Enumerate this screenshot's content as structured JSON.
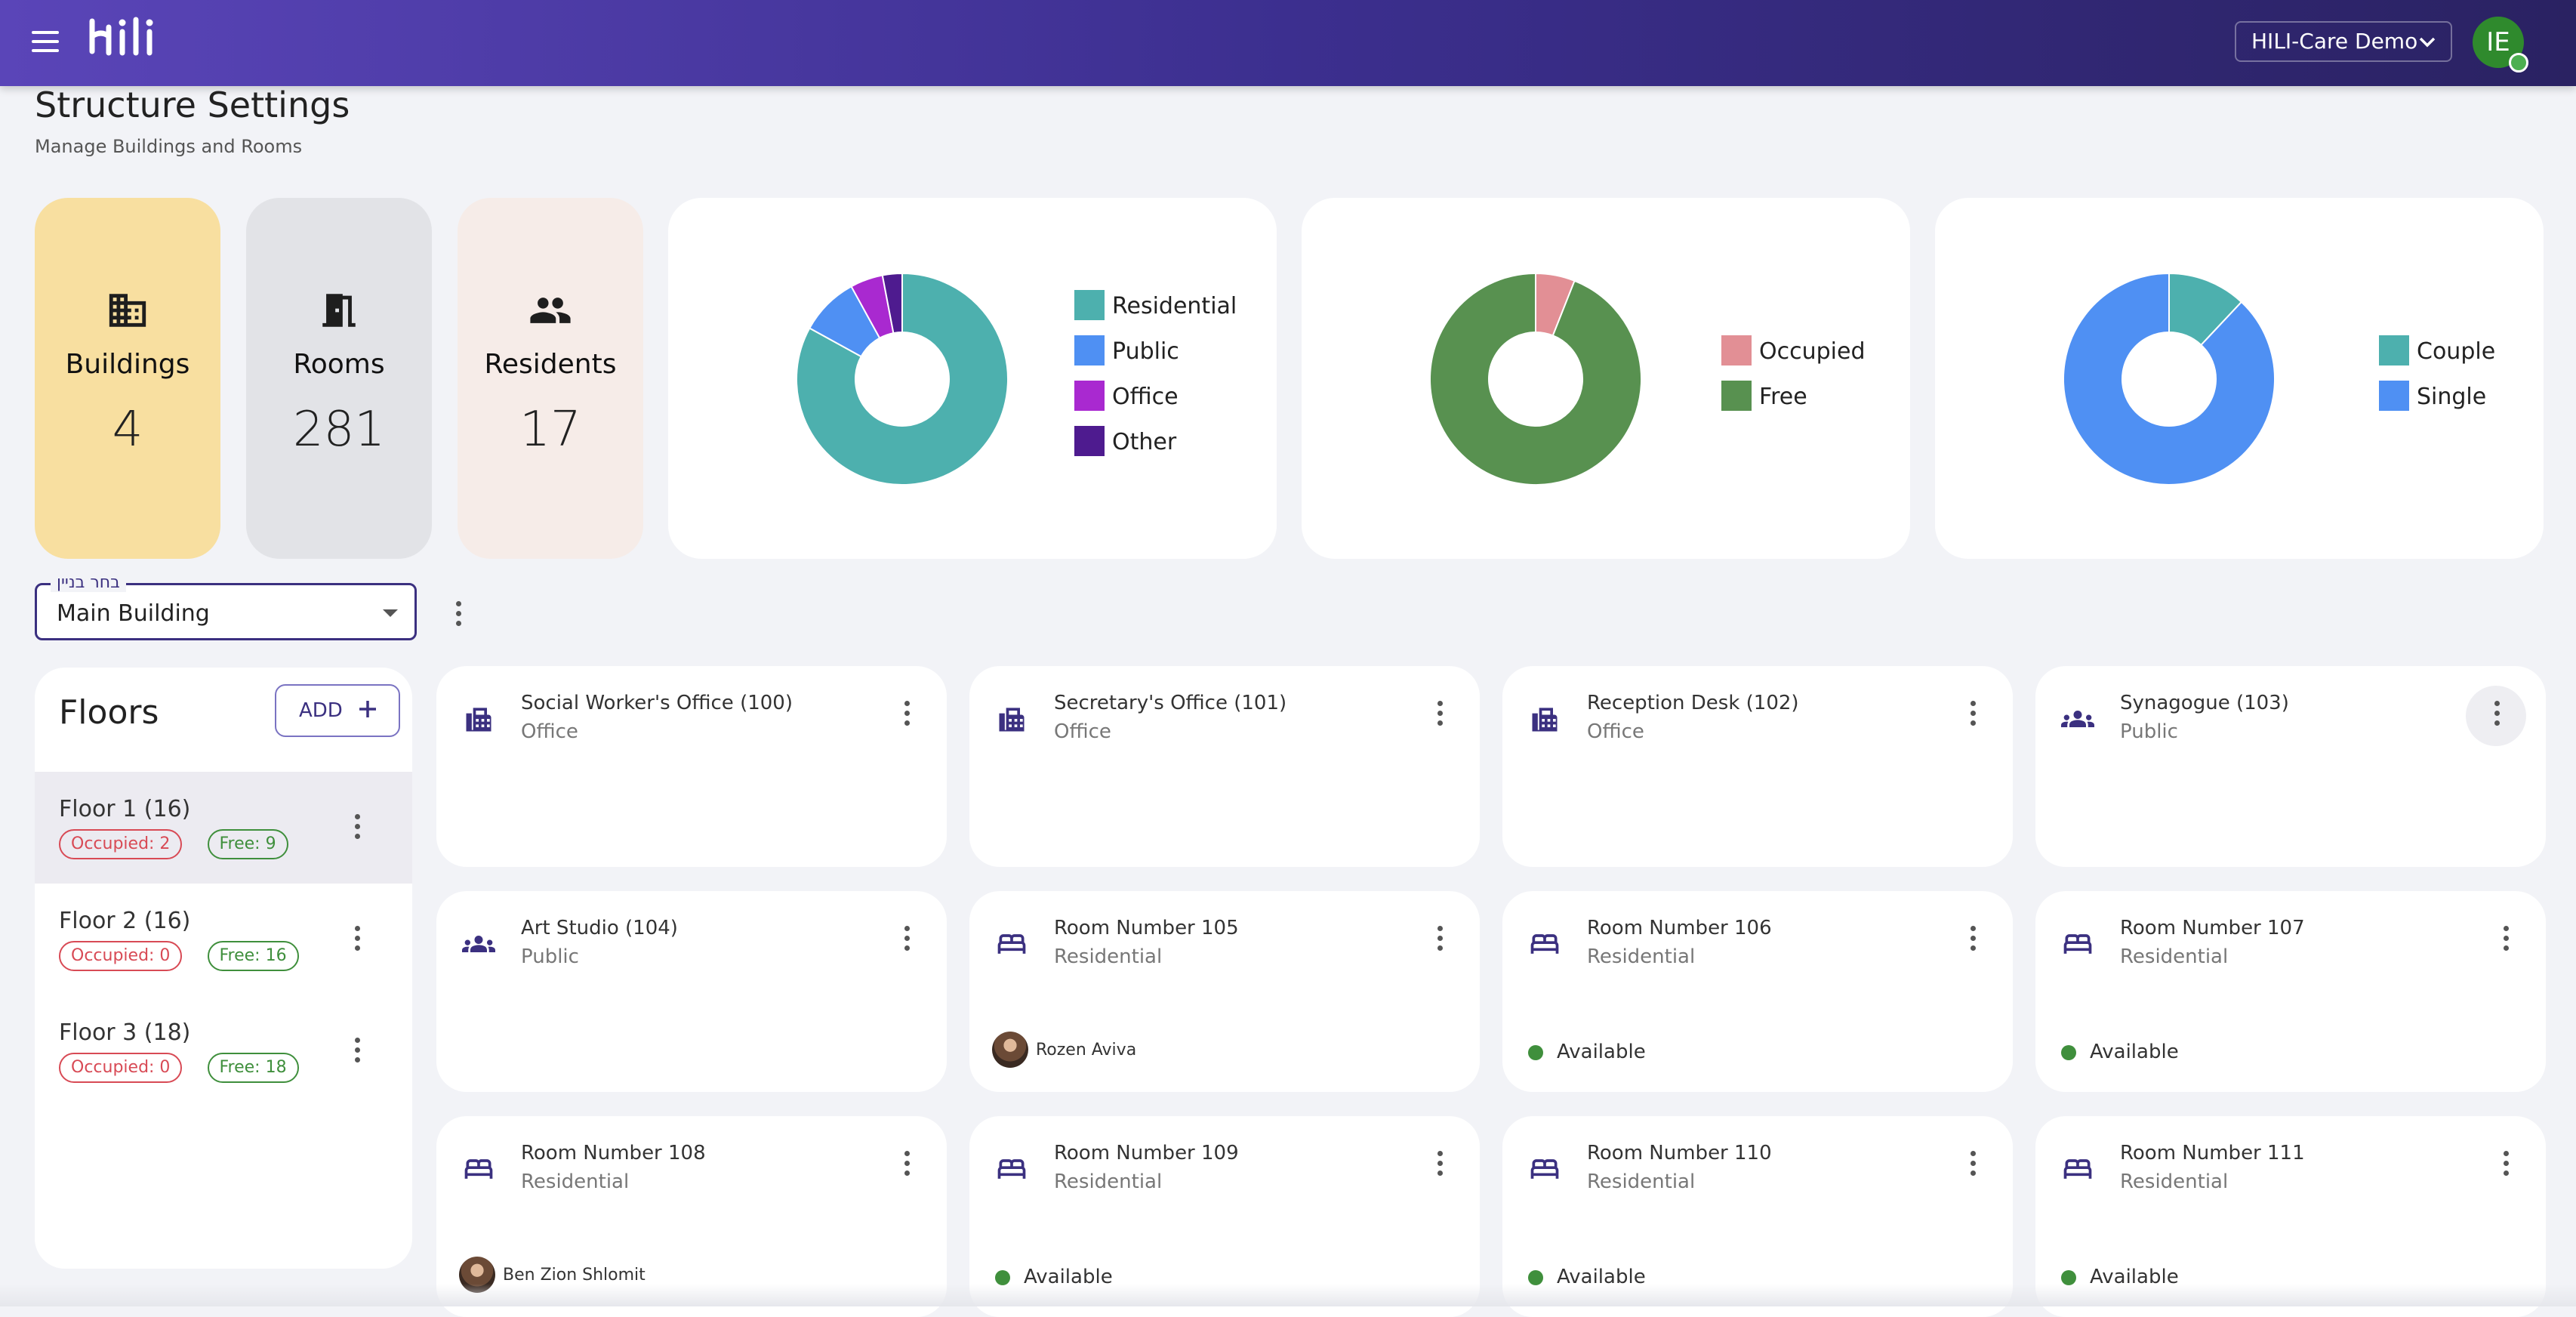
{
  "header": {
    "org_name": "HILI-Care Demo",
    "avatar_initials": "IE"
  },
  "page": {
    "title": "Structure Settings",
    "subtitle": "Manage Buildings and Rooms"
  },
  "stats": [
    {
      "label": "Buildings",
      "value": "4",
      "icon": "building-icon",
      "color": "#f8dfa0"
    },
    {
      "label": "Rooms",
      "value": "281",
      "icon": "door-icon",
      "color": "#e2e3e7"
    },
    {
      "label": "Residents",
      "value": "17",
      "icon": "people-icon",
      "color": "#f6ece8"
    }
  ],
  "chart_data": [
    {
      "type": "pie",
      "categories": [
        "Residential",
        "Public",
        "Office",
        "Other"
      ],
      "values": [
        83,
        9,
        5,
        3
      ],
      "colors": [
        "#4db0ae",
        "#4f90f3",
        "#a929d0",
        "#4e1b8f"
      ],
      "legend": "right"
    },
    {
      "type": "pie",
      "categories": [
        "Occupied",
        "Free"
      ],
      "values": [
        6,
        94
      ],
      "colors": [
        "#e28f95",
        "#589150"
      ],
      "legend": "right"
    },
    {
      "type": "pie",
      "categories": [
        "Couple",
        "Single"
      ],
      "values": [
        12,
        88
      ],
      "colors": [
        "#4db0ae",
        "#4f90f3"
      ],
      "legend": "right"
    }
  ],
  "building_select": {
    "label": "בחר בניין",
    "value": "Main Building"
  },
  "floors": {
    "title": "Floors",
    "add_label": "ADD",
    "items": [
      {
        "name": "Floor 1 (16)",
        "occupied": "Occupied: 2",
        "free": "Free: 9",
        "selected": true
      },
      {
        "name": "Floor 2 (16)",
        "occupied": "Occupied: 0",
        "free": "Free: 16",
        "selected": false
      },
      {
        "name": "Floor 3 (18)",
        "occupied": "Occupied: 0",
        "free": "Free: 18",
        "selected": false
      }
    ]
  },
  "rooms": [
    {
      "name": "Social Worker's Office (100)",
      "type": "Office",
      "icon": "fax-icon"
    },
    {
      "name": "Secretary's Office (101)",
      "type": "Office",
      "icon": "fax-icon"
    },
    {
      "name": "Reception Desk (102)",
      "type": "Office",
      "icon": "fax-icon"
    },
    {
      "name": "Synagogue (103)",
      "type": "Public",
      "icon": "group-icon"
    },
    {
      "name": "Art Studio (104)",
      "type": "Public",
      "icon": "group-icon"
    },
    {
      "name": "Room Number 105",
      "type": "Residential",
      "icon": "bed-icon",
      "resident": "Rozen Aviva"
    },
    {
      "name": "Room Number 106",
      "type": "Residential",
      "icon": "bed-icon",
      "status": "Available"
    },
    {
      "name": "Room Number 107",
      "type": "Residential",
      "icon": "bed-icon",
      "status": "Available"
    },
    {
      "name": "Room Number 108",
      "type": "Residential",
      "icon": "bed-icon",
      "resident": "Ben Zion Shlomit"
    },
    {
      "name": "Room Number 109",
      "type": "Residential",
      "icon": "bed-icon",
      "status": "Available"
    },
    {
      "name": "Room Number 110",
      "type": "Residential",
      "icon": "bed-icon",
      "status": "Available"
    },
    {
      "name": "Room Number 111",
      "type": "Residential",
      "icon": "bed-icon",
      "status": "Available"
    }
  ]
}
